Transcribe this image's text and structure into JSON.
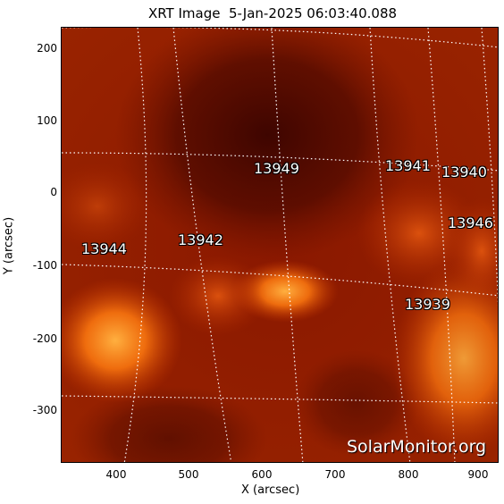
{
  "title": "XRT Image  5-Jan-2025 06:03:40.088",
  "axes": {
    "x_label": "X (arcsec)",
    "y_label": "Y (arcsec)",
    "x_ticks": [
      "400",
      "500",
      "600",
      "700",
      "800",
      "900"
    ],
    "y_ticks": [
      "200",
      "100",
      "0",
      "-100",
      "-200",
      "-300"
    ]
  },
  "regions": [
    {
      "id": "13949",
      "label": "13949"
    },
    {
      "id": "13941",
      "label": "13941"
    },
    {
      "id": "13940",
      "label": "13940"
    },
    {
      "id": "13946",
      "label": "13946"
    },
    {
      "id": "13944",
      "label": "13944"
    },
    {
      "id": "13942",
      "label": "13942"
    },
    {
      "id": "13939",
      "label": "13939"
    }
  ],
  "watermark": "SolarMonitor.org",
  "colors": {
    "background_dark": "#3a0500",
    "background_mid": "#8a1a00",
    "bright": "#ff9a30",
    "grid": "#ffffff"
  }
}
